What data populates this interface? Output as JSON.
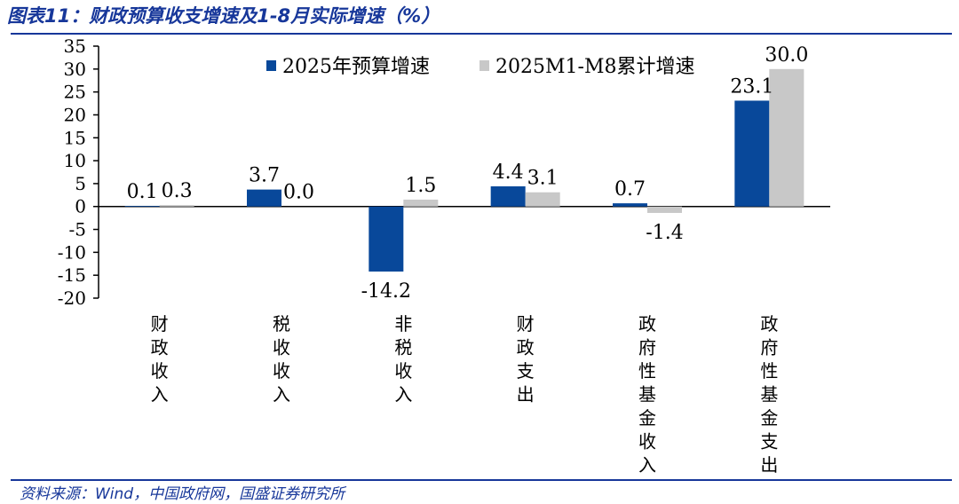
{
  "figure": {
    "title": "图表11：财政预算收支增速及1-8月实际增速（%）",
    "source": "资料来源：Wind，中国政府网，国盛证券研究所"
  },
  "colors": {
    "accent": "#17379a",
    "series_budget": "#08489a",
    "series_actual": "#c8c8c8"
  },
  "chart_data": {
    "type": "bar",
    "title": "",
    "xlabel": "",
    "ylabel": "",
    "ylim": [
      -20,
      35
    ],
    "yticks": [
      35,
      30,
      25,
      20,
      15,
      10,
      5,
      0,
      -5,
      -10,
      -15,
      -20
    ],
    "grid": false,
    "legend_position": "top-center",
    "categories": [
      "财政收入",
      "税收收入",
      "非税收入",
      "财政支出",
      "政府性基金收入",
      "政府性基金支出"
    ],
    "series": [
      {
        "name": "2025年预算增速",
        "values": [
          0.1,
          3.7,
          -14.2,
          4.4,
          0.7,
          23.1
        ],
        "labels": [
          "0.1",
          "3.7",
          "-14.2",
          "4.4",
          "0.7",
          "23.1"
        ]
      },
      {
        "name": "2025M1-M8累计增速",
        "values": [
          0.3,
          0.0,
          1.5,
          3.1,
          -1.4,
          30.0
        ],
        "labels": [
          "0.3",
          "0.0",
          "1.5",
          "3.1",
          "-1.4",
          "30.0"
        ]
      }
    ]
  }
}
